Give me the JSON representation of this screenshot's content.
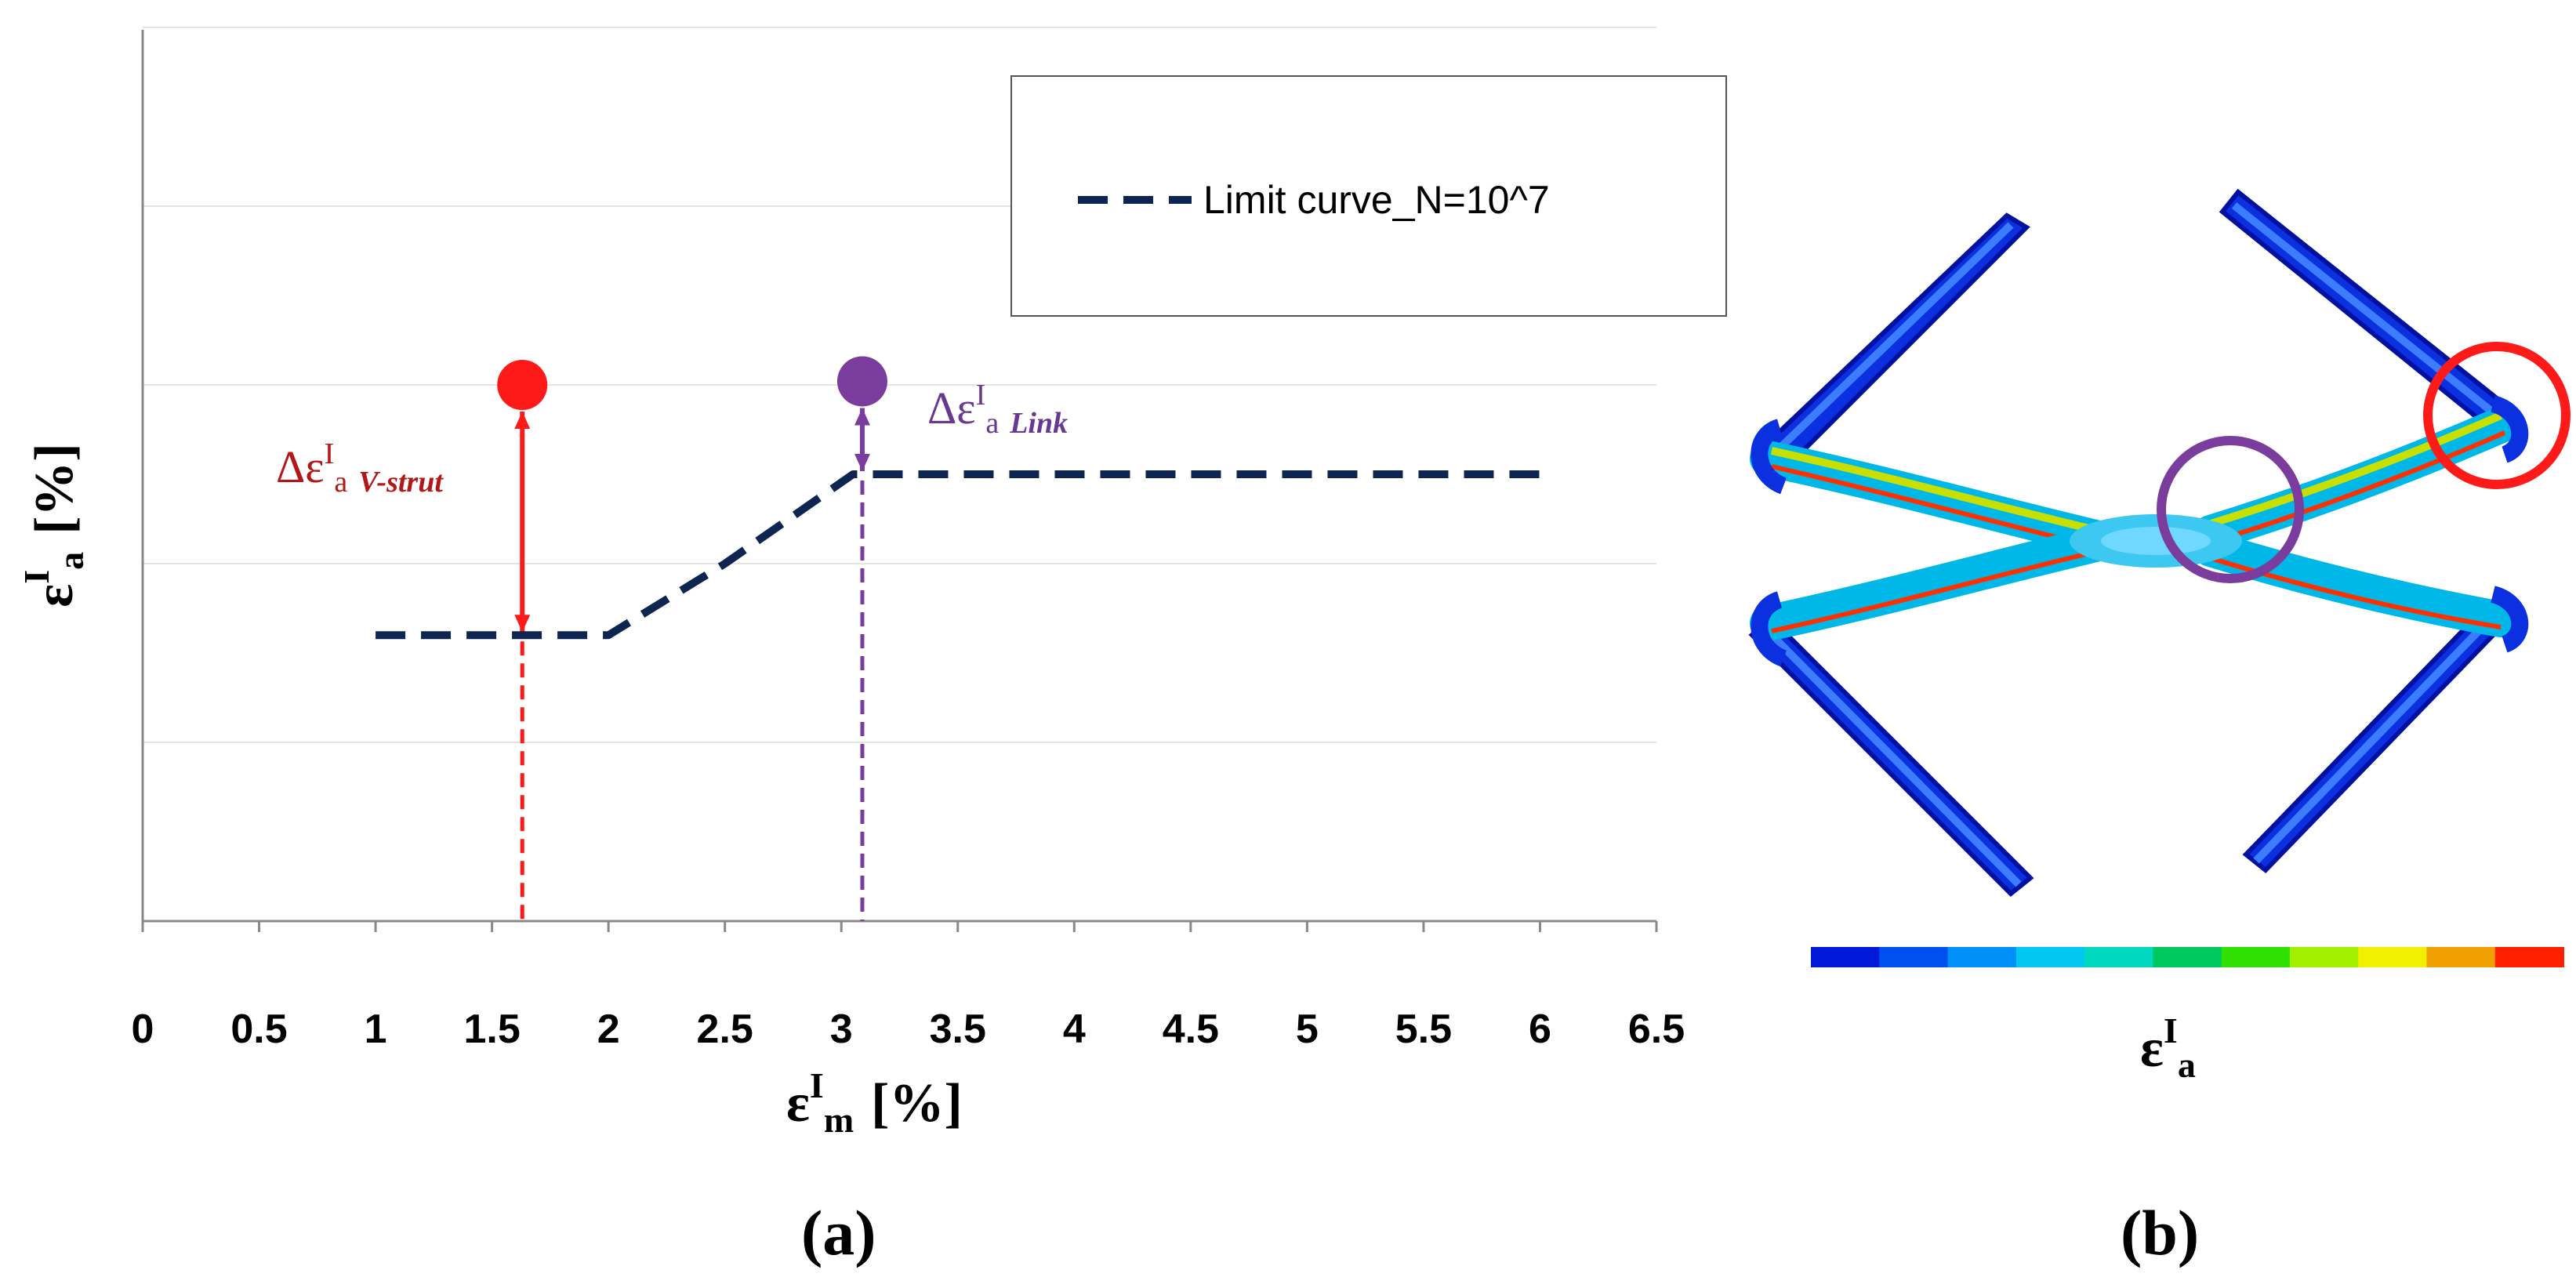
{
  "chart_data": {
    "type": "line",
    "title": "",
    "xlabel": {
      "symbol": "ε",
      "sup": "I",
      "sub": "m",
      "unit": "[%]"
    },
    "ylabel": {
      "symbol": "ε",
      "sup": "I",
      "sub": "a",
      "unit": "[%]"
    },
    "xlim": [
      0,
      6.5
    ],
    "xticks": [
      "0",
      "0.5",
      "1",
      "1.5",
      "2",
      "2.5",
      "3",
      "3.5",
      "4",
      "4.5",
      "5",
      "5.5",
      "6",
      "6.5"
    ],
    "grid": true,
    "legend_position": "top-right",
    "series": [
      {
        "name": "Limit curve_N=10^7",
        "style": "dashed",
        "color": "#0d2550",
        "x": [
          1.0,
          2.0,
          2.5,
          3.05,
          6.0
        ],
        "y": [
          0.8,
          0.8,
          1.0,
          1.25,
          1.25
        ]
      }
    ],
    "points": [
      {
        "label": "V-strut",
        "x": 1.63,
        "y": 1.5,
        "color": "#ff1a1a"
      },
      {
        "label": "Link",
        "x": 3.09,
        "y": 1.51,
        "color": "#7a3d9e"
      }
    ],
    "annotations": [
      {
        "prefix": "Δε",
        "sup": "I",
        "sub": "a",
        "subscript_italic": "V-strut",
        "color": "#b21818"
      },
      {
        "prefix": "Δε",
        "sup": "I",
        "sub": "a",
        "subscript_italic": "Link",
        "color": "#6a3792"
      }
    ]
  },
  "panel_b": {
    "colorbar_label": {
      "symbol": "ε",
      "sup": "I",
      "sub": "a"
    },
    "colorbar_colors": [
      "#0018d8",
      "#0050f0",
      "#0090f8",
      "#00c8f0",
      "#00d8c0",
      "#00c860",
      "#30e000",
      "#a0f000",
      "#f0f000",
      "#f0a000",
      "#ff2000"
    ],
    "highlight_colors": [
      "#ff1a1a",
      "#7a3d9e"
    ]
  },
  "labels": {
    "panel_a": "(a)",
    "panel_b": "(b)"
  }
}
